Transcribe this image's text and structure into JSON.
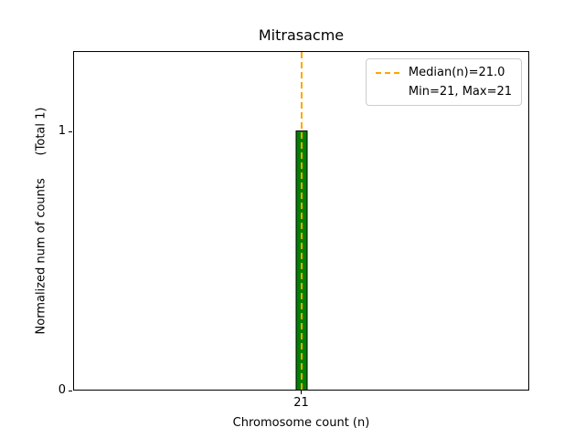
{
  "chart_data": {
    "type": "bar",
    "title": "Mitrasacme",
    "xlabel": "Chromosome count (n)",
    "ylabel": "Normalized num of counts      (Total 1)",
    "categories": [
      21
    ],
    "values": [
      1
    ],
    "xticks": [
      "21"
    ],
    "yticks": [
      "0",
      "1"
    ],
    "ylim": [
      0,
      1.31
    ],
    "grid": false,
    "bar_color": "#008000",
    "bar_edge_color": "#000000",
    "median": 21.0,
    "min": 21,
    "max": 21,
    "median_line_color": "#FFA500",
    "legend": {
      "position": "upper right",
      "entries": [
        {
          "swatch": "dashed-orange-line",
          "label": "Median(n)=21.0"
        },
        {
          "swatch": "none",
          "label": "Min=21, Max=21"
        }
      ]
    }
  }
}
